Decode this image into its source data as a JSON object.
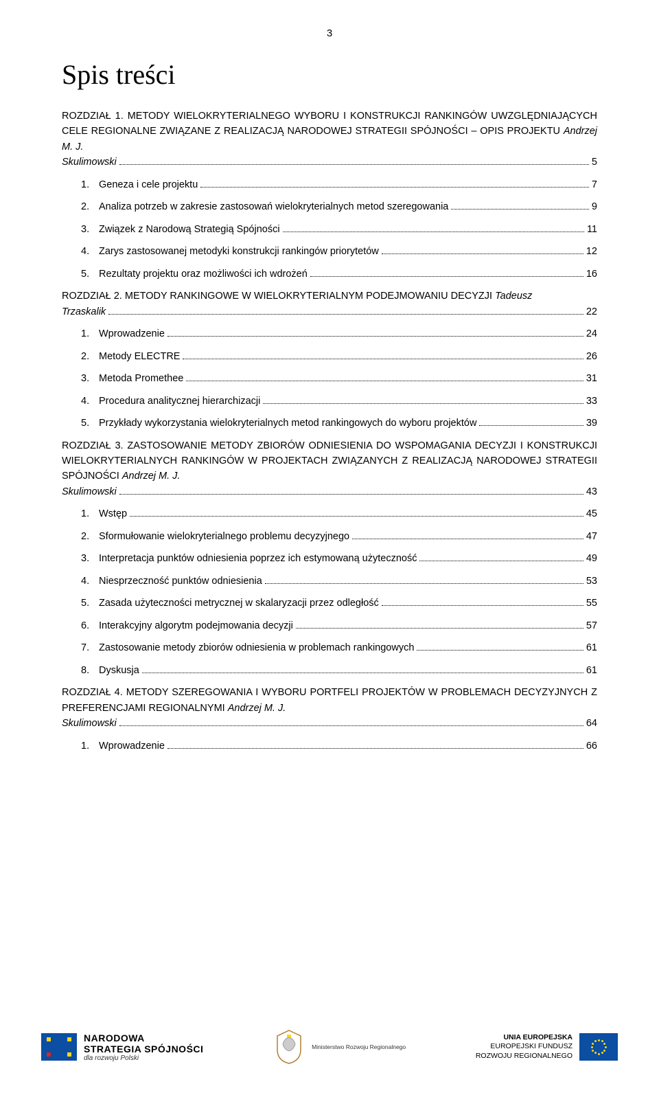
{
  "page_number": "3",
  "title": "Spis treści",
  "body_fontsize_pt": 11,
  "title_fontsize_pt": 30,
  "text_color": "#000000",
  "background_color": "#ffffff",
  "chapters": [
    {
      "label": "ROZDZIAŁ 1.",
      "title_pre": "METODY WIELOKRYTERIALNEGO WYBORU I KONSTRUKCJI RANKINGÓW UWZGLĘDNIAJĄCYCH CELE REGIONALNE ZWIĄZANE Z REALIZACJĄ NARODOWEJ STRATEGII SPÓJNOŚCI – OPIS PROJEKTU ",
      "author": "Andrzej M. J. Skulimowski",
      "title_post": "",
      "page": "5",
      "items": [
        {
          "num": "1.",
          "text": "Geneza i cele projektu",
          "page": "7"
        },
        {
          "num": "2.",
          "text": "Analiza potrzeb w zakresie zastosowań wielokryterialnych metod szeregowania",
          "page": "9"
        },
        {
          "num": "3.",
          "text": "Związek z Narodową Strategią Spójności",
          "page": "11"
        },
        {
          "num": "4.",
          "text": "Zarys zastosowanej metodyki konstrukcji rankingów priorytetów",
          "page": "12"
        },
        {
          "num": "5.",
          "text": "Rezultaty projektu oraz możliwości ich wdrożeń",
          "page": "16"
        }
      ]
    },
    {
      "label": "ROZDZIAŁ 2.",
      "title_pre": "METODY RANKINGOWE  W WIELOKRYTERIALNYM PODEJMOWANIU DECYZJI ",
      "author": "Tadeusz Trzaskalik",
      "title_post": "",
      "page": "22",
      "items": [
        {
          "num": "1.",
          "text": "Wprowadzenie",
          "page": "24"
        },
        {
          "num": "2.",
          "text": "Metody ELECTRE",
          "page": "26"
        },
        {
          "num": "3.",
          "text": "Metoda Promethee",
          "page": "31"
        },
        {
          "num": "4.",
          "text": "Procedura analitycznej hierarchizacji",
          "page": "33"
        },
        {
          "num": "5.",
          "text": "Przykłady wykorzystania wielokryterialnych metod rankingowych do wyboru projektów",
          "page": "39"
        }
      ]
    },
    {
      "label": "ROZDZIAŁ 3.",
      "title_pre": "ZASTOSOWANIE METODY ZBIORÓW ODNIESIENIA DO WSPOMAGANIA DECYZJI I KONSTRUKCJI WIELOKRYTERIALNYCH RANKINGÓW W PROJEKTACH ZWIĄZANYCH Z REALIZACJĄ NARODOWEJ STRATEGII SPÓJNOŚCI ",
      "author": "Andrzej M. J. Skulimowski",
      "title_post": "",
      "page": "43",
      "items": [
        {
          "num": "1.",
          "text": "Wstęp",
          "page": "45"
        },
        {
          "num": "2.",
          "text": "Sformułowanie wielokryterialnego problemu decyzyjnego",
          "page": "47"
        },
        {
          "num": "3.",
          "text": "Interpretacja punktów odniesienia poprzez ich estymowaną użyteczność",
          "page": "49"
        },
        {
          "num": "4.",
          "text": "Niesprzeczność punktów odniesienia",
          "page": "53"
        },
        {
          "num": "5.",
          "text": "Zasada użyteczności metrycznej w skalaryzacji przez odległość",
          "page": "55"
        },
        {
          "num": "6.",
          "text": "Interakcyjny algorytm podejmowania decyzji",
          "page": "57"
        },
        {
          "num": "7.",
          "text": "Zastosowanie metody zbiorów odniesienia w problemach rankingowych",
          "page": "61"
        },
        {
          "num": "8.",
          "text": "Dyskusja",
          "page": "61"
        }
      ]
    },
    {
      "label": "ROZDZIAŁ 4.",
      "title_pre": "METODY SZEREGOWANIA I WYBORU PORTFELI PROJEKTÓW  W PROBLEMACH DECYZYJNYCH Z PREFERENCJAMI REGIONALNYMI ",
      "author": "Andrzej M. J. Skulimowski",
      "title_post": "",
      "page": "64",
      "items": [
        {
          "num": "1.",
          "text": "Wprowadzenie",
          "page": "66"
        }
      ]
    }
  ],
  "footer": {
    "left": {
      "line1": "NARODOWA",
      "line2": "STRATEGIA SPÓJNOŚCI",
      "line3": "dla rozwoju Polski"
    },
    "center": {
      "text": "Ministerstwo Rozwoju Regionalnego"
    },
    "right": {
      "line1": "UNIA EUROPEJSKA",
      "line2": "EUROPEJSKI FUNDUSZ",
      "line3": "ROZWOJU REGIONALNEGO"
    },
    "colors": {
      "eu_blue": "#0b4ea2",
      "eu_yellow": "#ffd617",
      "red": "#d22730"
    }
  }
}
